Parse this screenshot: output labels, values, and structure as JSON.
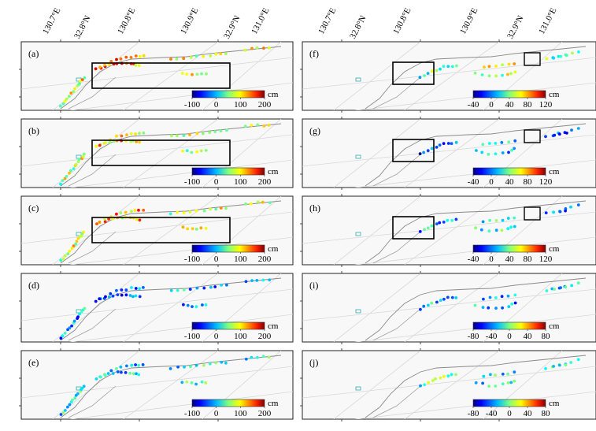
{
  "figure": {
    "columns": [
      {
        "id": "left",
        "top_labels": [
          "130.7°E",
          "32.8°N",
          "130.8°E",
          "130.9°E",
          "32.9°N",
          "131.0°E"
        ],
        "panels": [
          {
            "label": "(a)",
            "unit": "cm",
            "colorbar_ticks": [
              "-100",
              "0",
              "100",
              "200"
            ],
            "has_box": true
          },
          {
            "label": "(b)",
            "unit": "cm",
            "colorbar_ticks": [
              "-100",
              "0",
              "100",
              "200"
            ],
            "has_box": true
          },
          {
            "label": "(c)",
            "unit": "cm",
            "colorbar_ticks": [
              "-100",
              "0",
              "100",
              "200"
            ],
            "has_box": true
          },
          {
            "label": "(d)",
            "unit": "cm",
            "colorbar_ticks": [
              "-100",
              "0",
              "100",
              "200"
            ],
            "has_box": false
          },
          {
            "label": "(e)",
            "unit": "cm",
            "colorbar_ticks": [
              "-100",
              "0",
              "100",
              "200"
            ],
            "has_box": false
          }
        ]
      },
      {
        "id": "right",
        "top_labels": [
          "130.7°E",
          "32.8°N",
          "130.8°E",
          "130.9°E",
          "32.9°N",
          "131.0°E"
        ],
        "panels": [
          {
            "label": "(f)",
            "unit": "cm",
            "colorbar_ticks": [
              "-40",
              "0",
              "40",
              "80",
              "120"
            ],
            "has_box": true
          },
          {
            "label": "(g)",
            "unit": "cm",
            "colorbar_ticks": [
              "-40",
              "0",
              "40",
              "80",
              "120"
            ],
            "has_box": true
          },
          {
            "label": "(h)",
            "unit": "cm",
            "colorbar_ticks": [
              "-40",
              "0",
              "40",
              "80",
              "120"
            ],
            "has_box": true
          },
          {
            "label": "(i)",
            "unit": "cm",
            "colorbar_ticks": [
              "-80",
              "-40",
              "0",
              "40",
              "80"
            ],
            "has_box": false
          },
          {
            "label": "(j)",
            "unit": "cm",
            "colorbar_ticks": [
              "-80",
              "-40",
              "0",
              "40",
              "80"
            ],
            "has_box": false
          }
        ]
      }
    ]
  }
}
